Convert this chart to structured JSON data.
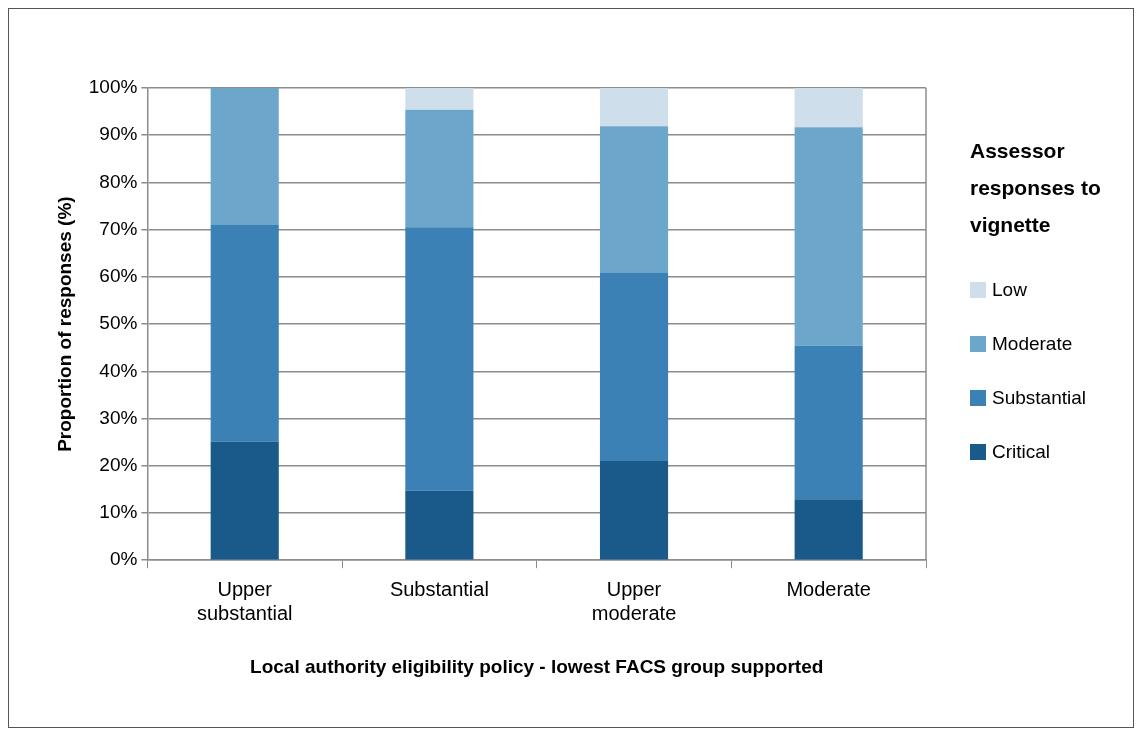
{
  "chart_data": {
    "type": "bar",
    "stacked": true,
    "xlabel": "Local authority eligibility policy - lowest FACS group supported",
    "ylabel": "Proportion of responses (%)",
    "legend_title": "Assessor responses to vignette",
    "legend": "right",
    "categories": [
      "Upper substantial",
      "Substantial",
      "Upper moderate",
      "Moderate"
    ],
    "series": [
      {
        "name": "Critical",
        "color": "#195a8a",
        "values": [
          25.1,
          14.7,
          21.0,
          12.9
        ]
      },
      {
        "name": "Substantial",
        "color": "#3b81b5",
        "values": [
          45.9,
          55.8,
          39.8,
          32.5
        ]
      },
      {
        "name": "Moderate",
        "color": "#6da6cb",
        "values": [
          29.0,
          24.9,
          31.1,
          46.3
        ]
      },
      {
        "name": "Low",
        "color": "#cedfeb",
        "values": [
          0,
          4.6,
          8.1,
          8.3
        ]
      }
    ],
    "ylim": [
      0,
      100
    ],
    "yticks": [
      {
        "value": 0,
        "label": "0%"
      },
      {
        "value": 10,
        "label": "10%"
      },
      {
        "value": 20,
        "label": "20%"
      },
      {
        "value": 30,
        "label": "30%"
      },
      {
        "value": 40,
        "label": "40%"
      },
      {
        "value": 50,
        "label": "50%"
      },
      {
        "value": 60,
        "label": "60%"
      },
      {
        "value": 70,
        "label": "70%"
      },
      {
        "value": 80,
        "label": "80%"
      },
      {
        "value": 90,
        "label": "90%"
      },
      {
        "value": 100,
        "label": "100%"
      }
    ],
    "grid": "y"
  }
}
